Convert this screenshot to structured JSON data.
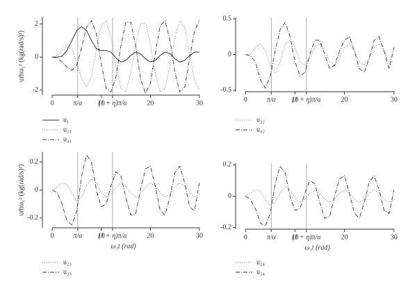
{
  "chart_data": [
    {
      "type": "line",
      "ylabel": "um̄ω₁² (kg(rad/s)²)",
      "x": [
        0,
        1,
        2,
        3,
        4,
        5,
        6,
        7,
        8,
        9,
        10,
        11,
        12,
        13,
        14,
        15,
        16,
        17,
        18,
        19,
        20,
        21,
        22,
        23,
        24,
        25,
        26,
        27,
        28,
        29,
        30
      ],
      "xlim": [
        -2,
        31
      ],
      "xticks": [
        0,
        {
          "value": 5.2,
          "label": "π/α"
        },
        10,
        {
          "value": 12.3,
          "label": "(1 + η)π/α"
        },
        20,
        30
      ],
      "ylim": [
        -2.3,
        2.4
      ],
      "yticks": [
        -2,
        0,
        2
      ],
      "series": [
        {
          "name": "u₁",
          "color": "#333333",
          "dash": "solid",
          "values": [
            0,
            0,
            0.05,
            0.4,
            1.0,
            1.6,
            1.85,
            1.6,
            1.0,
            0.5,
            0.4,
            0.4,
            0.3,
            -0.05,
            -0.3,
            -0.2,
            0.1,
            0.3,
            0.2,
            -0.1,
            -0.3,
            -0.2,
            0.1,
            0.3,
            0.2,
            -0.1,
            -0.3,
            -0.2,
            0.1,
            0.3,
            0.3
          ]
        },
        {
          "name": "u₂₁",
          "color": "#777777",
          "dash": "dotted",
          "values": [
            0,
            0.1,
            0.4,
            0.6,
            0.5,
            -0.3,
            -1.3,
            -1.8,
            -1.2,
            0.5,
            1.9,
            2.2,
            1.2,
            -0.6,
            -1.9,
            -2.1,
            -1.0,
            0.8,
            2.0,
            2.1,
            0.8,
            -1.0,
            -2.1,
            -1.9,
            -0.5,
            1.2,
            2.2,
            1.8,
            0.2,
            -1.4,
            -2.0
          ]
        },
        {
          "name": "u₃₁",
          "color": "#333333",
          "dash": "dashdot",
          "values": [
            0,
            -0.05,
            -0.3,
            -0.6,
            -0.8,
            -0.5,
            0.6,
            1.8,
            2.2,
            1.4,
            -0.4,
            -1.9,
            -2.1,
            -1.2,
            0.7,
            2.1,
            2.1,
            0.7,
            -1.3,
            -2.2,
            -1.6,
            0.2,
            1.9,
            2.2,
            1.0,
            -0.9,
            -2.1,
            -1.8,
            -0.1,
            1.6,
            2.2
          ]
        }
      ]
    },
    {
      "type": "line",
      "x": [
        0,
        1,
        2,
        3,
        4,
        5,
        6,
        7,
        8,
        9,
        10,
        11,
        12,
        13,
        14,
        15,
        16,
        17,
        18,
        19,
        20,
        21,
        22,
        23,
        24,
        25,
        26,
        27,
        28,
        29,
        30
      ],
      "xlim": [
        -2,
        31
      ],
      "xticks": [
        0,
        {
          "value": 5.2,
          "label": "π/α"
        },
        10,
        {
          "value": 12.3,
          "label": "(1 + η)π/α"
        },
        20,
        30
      ],
      "ylim": [
        -0.52,
        0.52
      ],
      "yticks": [
        -0.5,
        0,
        0.5
      ],
      "series": [
        {
          "name": "u₂₂",
          "color": "#777777",
          "dash": "dotted",
          "values": [
            0,
            0,
            0.1,
            0.15,
            0.05,
            -0.15,
            -0.25,
            -0.1,
            0.15,
            0.2,
            0.1,
            -0.1,
            -0.15,
            -0.05,
            0.1,
            0.15,
            0.05,
            -0.1,
            -0.15,
            -0.05,
            0.1,
            0.15,
            0.05,
            -0.1,
            -0.15,
            -0.05,
            0.1,
            0.15,
            0.05,
            -0.1,
            -0.1
          ]
        },
        {
          "name": "u₃₂",
          "color": "#333333",
          "dash": "dashdot",
          "values": [
            0,
            -0.02,
            -0.1,
            -0.35,
            -0.47,
            -0.3,
            0.05,
            0.35,
            0.45,
            0.25,
            -0.1,
            -0.3,
            -0.25,
            0,
            0.2,
            0.2,
            0,
            -0.2,
            -0.15,
            0.05,
            0.2,
            0.25,
            0.05,
            -0.2,
            -0.25,
            -0.05,
            0.2,
            0.25,
            0.05,
            -0.2,
            0.1
          ]
        }
      ]
    },
    {
      "type": "line",
      "ylabel": "um̄ω₁² (kg(rad/s)²)",
      "xlabel": "ω₁t (rad)",
      "x": [
        0,
        1,
        2,
        3,
        4,
        5,
        6,
        7,
        8,
        9,
        10,
        11,
        12,
        13,
        14,
        15,
        16,
        17,
        18,
        19,
        20,
        21,
        22,
        23,
        24,
        25,
        26,
        27,
        28,
        29,
        30
      ],
      "xlim": [
        -2,
        31
      ],
      "xticks": [
        0,
        {
          "value": 5.2,
          "label": "π/α"
        },
        10,
        {
          "value": 12.3,
          "label": "(1 + η)π/α"
        },
        20,
        30
      ],
      "ylim": [
        -0.27,
        0.27
      ],
      "yticks": [
        -0.2,
        0,
        0.2
      ],
      "series": [
        {
          "name": "u₂₃",
          "color": "#777777",
          "dash": "dotted",
          "values": [
            0,
            0.02,
            0.05,
            0.04,
            -0.02,
            -0.08,
            -0.05,
            0.03,
            0.08,
            0.05,
            -0.02,
            -0.05,
            -0.03,
            0.02,
            0.05,
            0.03,
            -0.02,
            -0.05,
            -0.03,
            0.02,
            0.05,
            0.03,
            -0.02,
            -0.05,
            -0.03,
            0.02,
            0.05,
            0.03,
            -0.02,
            -0.05,
            -0.03
          ]
        },
        {
          "name": "u₃₃",
          "color": "#333333",
          "dash": "dashdot",
          "values": [
            0,
            -0.02,
            -0.1,
            -0.22,
            -0.25,
            -0.15,
            0.1,
            0.25,
            0.2,
            0,
            -0.12,
            -0.1,
            0.03,
            0.13,
            0.1,
            -0.05,
            -0.18,
            -0.17,
            0,
            0.15,
            0.17,
            0.03,
            -0.15,
            -0.18,
            -0.05,
            0.12,
            0.17,
            0.05,
            -0.12,
            -0.15,
            0.05
          ]
        }
      ]
    },
    {
      "type": "line",
      "xlabel": "ω₁t (rad)",
      "x": [
        0,
        1,
        2,
        3,
        4,
        5,
        6,
        7,
        8,
        9,
        10,
        11,
        12,
        13,
        14,
        15,
        16,
        17,
        18,
        19,
        20,
        21,
        22,
        23,
        24,
        25,
        26,
        27,
        28,
        29,
        30
      ],
      "xlim": [
        -2,
        31
      ],
      "xticks": [
        0,
        {
          "value": 5.2,
          "label": "π/α"
        },
        10,
        {
          "value": 12.3,
          "label": "(1 + η)π/α"
        },
        20,
        30
      ],
      "ylim": [
        -0.21,
        0.21
      ],
      "yticks": [
        -0.2,
        0,
        0.2
      ],
      "series": [
        {
          "name": "u₂₄",
          "color": "#777777",
          "dash": "dotted",
          "values": [
            0,
            0.02,
            0.04,
            0.03,
            -0.02,
            -0.06,
            -0.04,
            0.02,
            0.06,
            0.04,
            -0.01,
            -0.04,
            -0.02,
            0.02,
            0.04,
            0.02,
            -0.02,
            -0.04,
            -0.02,
            0.02,
            0.04,
            0.02,
            -0.02,
            -0.04,
            -0.02,
            0.02,
            0.04,
            0.02,
            -0.02,
            -0.04,
            -0.02
          ]
        },
        {
          "name": "u₃₄",
          "color": "#333333",
          "dash": "dashdot",
          "values": [
            0,
            -0.02,
            -0.08,
            -0.17,
            -0.19,
            -0.11,
            0.08,
            0.19,
            0.15,
            0,
            -0.09,
            -0.08,
            0.02,
            0.1,
            0.08,
            -0.04,
            -0.14,
            -0.13,
            0,
            0.11,
            0.13,
            0.02,
            -0.11,
            -0.14,
            -0.04,
            0.09,
            0.13,
            0.04,
            -0.09,
            -0.11,
            0.04
          ]
        }
      ]
    }
  ]
}
